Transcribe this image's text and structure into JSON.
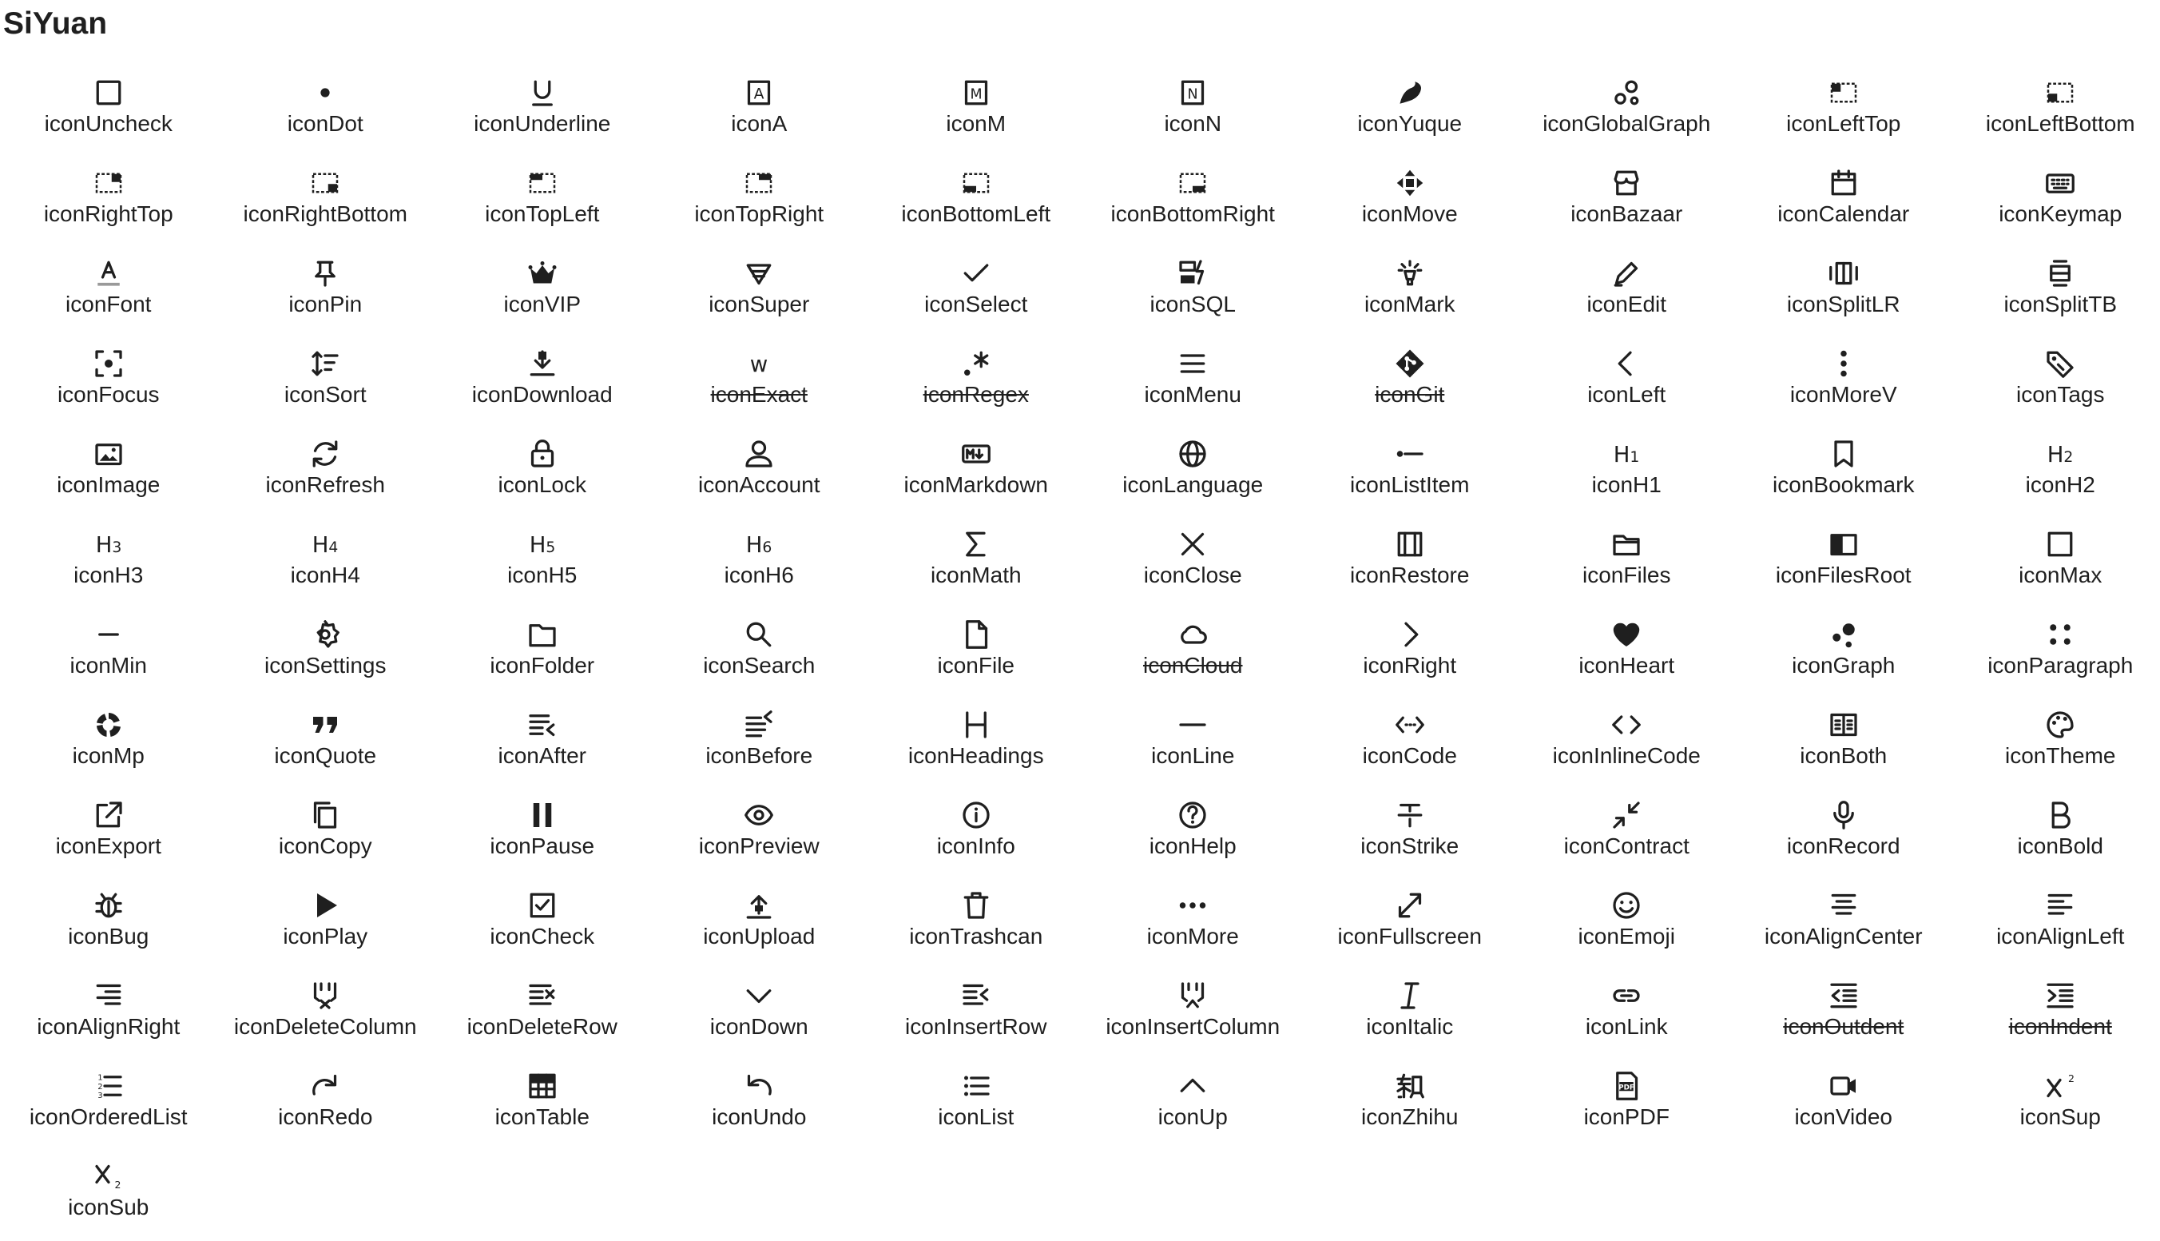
{
  "page": {
    "title": "SiYuan"
  },
  "icons": [
    {
      "label": "iconUncheck",
      "icon": "uncheck-icon"
    },
    {
      "label": "iconDot",
      "icon": "dot-icon"
    },
    {
      "label": "iconUnderline",
      "icon": "underline-icon"
    },
    {
      "label": "iconA",
      "icon": "a-icon"
    },
    {
      "label": "iconM",
      "icon": "m-icon"
    },
    {
      "label": "iconN",
      "icon": "n-icon"
    },
    {
      "label": "iconYuque",
      "icon": "yuque-icon"
    },
    {
      "label": "iconGlobalGraph",
      "icon": "global-graph-icon"
    },
    {
      "label": "iconLeftTop",
      "icon": "left-top-icon"
    },
    {
      "label": "iconLeftBottom",
      "icon": "left-bottom-icon"
    },
    {
      "label": "iconRightTop",
      "icon": "right-top-icon"
    },
    {
      "label": "iconRightBottom",
      "icon": "right-bottom-icon"
    },
    {
      "label": "iconTopLeft",
      "icon": "top-left-icon"
    },
    {
      "label": "iconTopRight",
      "icon": "top-right-icon"
    },
    {
      "label": "iconBottomLeft",
      "icon": "bottom-left-icon"
    },
    {
      "label": "iconBottomRight",
      "icon": "bottom-right-icon"
    },
    {
      "label": "iconMove",
      "icon": "move-icon"
    },
    {
      "label": "iconBazaar",
      "icon": "bazaar-icon"
    },
    {
      "label": "iconCalendar",
      "icon": "calendar-icon"
    },
    {
      "label": "iconKeymap",
      "icon": "keymap-icon"
    },
    {
      "label": "iconFont",
      "icon": "font-icon"
    },
    {
      "label": "iconPin",
      "icon": "pin-icon"
    },
    {
      "label": "iconVIP",
      "icon": "vip-icon"
    },
    {
      "label": "iconSuper",
      "icon": "super-icon"
    },
    {
      "label": "iconSelect",
      "icon": "select-icon"
    },
    {
      "label": "iconSQL",
      "icon": "sql-icon"
    },
    {
      "label": "iconMark",
      "icon": "mark-icon"
    },
    {
      "label": "iconEdit",
      "icon": "edit-icon"
    },
    {
      "label": "iconSplitLR",
      "icon": "split-lr-icon"
    },
    {
      "label": "iconSplitTB",
      "icon": "split-tb-icon"
    },
    {
      "label": "iconFocus",
      "icon": "focus-icon"
    },
    {
      "label": "iconSort",
      "icon": "sort-icon"
    },
    {
      "label": "iconDownload",
      "icon": "download-icon"
    },
    {
      "label": "iconExact",
      "icon": "exact-icon",
      "strike": true
    },
    {
      "label": "iconRegex",
      "icon": "regex-icon",
      "strike": true
    },
    {
      "label": "iconMenu",
      "icon": "menu-icon"
    },
    {
      "label": "iconGit",
      "icon": "git-icon",
      "strike": true
    },
    {
      "label": "iconLeft",
      "icon": "left-icon"
    },
    {
      "label": "iconMoreV",
      "icon": "more-v-icon"
    },
    {
      "label": "iconTags",
      "icon": "tags-icon"
    },
    {
      "label": "iconImage",
      "icon": "image-icon"
    },
    {
      "label": "iconRefresh",
      "icon": "refresh-icon"
    },
    {
      "label": "iconLock",
      "icon": "lock-icon"
    },
    {
      "label": "iconAccount",
      "icon": "account-icon"
    },
    {
      "label": "iconMarkdown",
      "icon": "markdown-icon"
    },
    {
      "label": "iconLanguage",
      "icon": "language-icon"
    },
    {
      "label": "iconListItem",
      "icon": "list-item-icon"
    },
    {
      "label": "iconH1",
      "icon": "h1-icon"
    },
    {
      "label": "iconBookmark",
      "icon": "bookmark-icon"
    },
    {
      "label": "iconH2",
      "icon": "h2-icon"
    },
    {
      "label": "iconH3",
      "icon": "h3-icon"
    },
    {
      "label": "iconH4",
      "icon": "h4-icon"
    },
    {
      "label": "iconH5",
      "icon": "h5-icon"
    },
    {
      "label": "iconH6",
      "icon": "h6-icon"
    },
    {
      "label": "iconMath",
      "icon": "math-icon"
    },
    {
      "label": "iconClose",
      "icon": "close-icon"
    },
    {
      "label": "iconRestore",
      "icon": "restore-icon"
    },
    {
      "label": "iconFiles",
      "icon": "files-icon"
    },
    {
      "label": "iconFilesRoot",
      "icon": "files-root-icon"
    },
    {
      "label": "iconMax",
      "icon": "max-icon"
    },
    {
      "label": "iconMin",
      "icon": "min-icon"
    },
    {
      "label": "iconSettings",
      "icon": "settings-icon"
    },
    {
      "label": "iconFolder",
      "icon": "folder-icon"
    },
    {
      "label": "iconSearch",
      "icon": "search-icon"
    },
    {
      "label": "iconFile",
      "icon": "file-icon"
    },
    {
      "label": "iconCloud",
      "icon": "cloud-icon",
      "strike": true
    },
    {
      "label": "iconRight",
      "icon": "right-icon"
    },
    {
      "label": "iconHeart",
      "icon": "heart-icon"
    },
    {
      "label": "iconGraph",
      "icon": "graph-icon"
    },
    {
      "label": "iconParagraph",
      "icon": "paragraph-icon"
    },
    {
      "label": "iconMp",
      "icon": "mp-icon"
    },
    {
      "label": "iconQuote",
      "icon": "quote-icon"
    },
    {
      "label": "iconAfter",
      "icon": "after-icon"
    },
    {
      "label": "iconBefore",
      "icon": "before-icon"
    },
    {
      "label": "iconHeadings",
      "icon": "headings-icon"
    },
    {
      "label": "iconLine",
      "icon": "line-icon"
    },
    {
      "label": "iconCode",
      "icon": "code-icon"
    },
    {
      "label": "iconInlineCode",
      "icon": "inline-code-icon"
    },
    {
      "label": "iconBoth",
      "icon": "both-icon"
    },
    {
      "label": "iconTheme",
      "icon": "theme-icon"
    },
    {
      "label": "iconExport",
      "icon": "export-icon"
    },
    {
      "label": "iconCopy",
      "icon": "copy-icon"
    },
    {
      "label": "iconPause",
      "icon": "pause-icon"
    },
    {
      "label": "iconPreview",
      "icon": "preview-icon"
    },
    {
      "label": "iconInfo",
      "icon": "info-icon"
    },
    {
      "label": "iconHelp",
      "icon": "help-icon"
    },
    {
      "label": "iconStrike",
      "icon": "strike-icon"
    },
    {
      "label": "iconContract",
      "icon": "contract-icon"
    },
    {
      "label": "iconRecord",
      "icon": "record-icon"
    },
    {
      "label": "iconBold",
      "icon": "bold-icon"
    },
    {
      "label": "iconBug",
      "icon": "bug-icon"
    },
    {
      "label": "iconPlay",
      "icon": "play-icon"
    },
    {
      "label": "iconCheck",
      "icon": "check-icon"
    },
    {
      "label": "iconUpload",
      "icon": "upload-icon"
    },
    {
      "label": "iconTrashcan",
      "icon": "trashcan-icon"
    },
    {
      "label": "iconMore",
      "icon": "more-icon"
    },
    {
      "label": "iconFullscreen",
      "icon": "fullscreen-icon"
    },
    {
      "label": "iconEmoji",
      "icon": "emoji-icon"
    },
    {
      "label": "iconAlignCenter",
      "icon": "align-center-icon"
    },
    {
      "label": "iconAlignLeft",
      "icon": "align-left-icon"
    },
    {
      "label": "iconAlignRight",
      "icon": "align-right-icon"
    },
    {
      "label": "iconDeleteColumn",
      "icon": "delete-column-icon"
    },
    {
      "label": "iconDeleteRow",
      "icon": "delete-row-icon"
    },
    {
      "label": "iconDown",
      "icon": "down-icon"
    },
    {
      "label": "iconInsertRow",
      "icon": "insert-row-icon"
    },
    {
      "label": "iconInsertColumn",
      "icon": "insert-column-icon"
    },
    {
      "label": "iconItalic",
      "icon": "italic-icon"
    },
    {
      "label": "iconLink",
      "icon": "link-icon"
    },
    {
      "label": "iconOutdent",
      "icon": "outdent-icon",
      "strike": true
    },
    {
      "label": "iconIndent",
      "icon": "indent-icon",
      "strike": true
    },
    {
      "label": "iconOrderedList",
      "icon": "ordered-list-icon"
    },
    {
      "label": "iconRedo",
      "icon": "redo-icon"
    },
    {
      "label": "iconTable",
      "icon": "table-icon"
    },
    {
      "label": "iconUndo",
      "icon": "undo-icon"
    },
    {
      "label": "iconList",
      "icon": "list-icon"
    },
    {
      "label": "iconUp",
      "icon": "up-icon"
    },
    {
      "label": "iconZhihu",
      "icon": "zhihu-icon"
    },
    {
      "label": "iconPDF",
      "icon": "pdf-icon"
    },
    {
      "label": "iconVideo",
      "icon": "video-icon"
    },
    {
      "label": "iconSup",
      "icon": "sup-icon"
    },
    {
      "label": "iconSub",
      "icon": "sub-icon"
    }
  ]
}
